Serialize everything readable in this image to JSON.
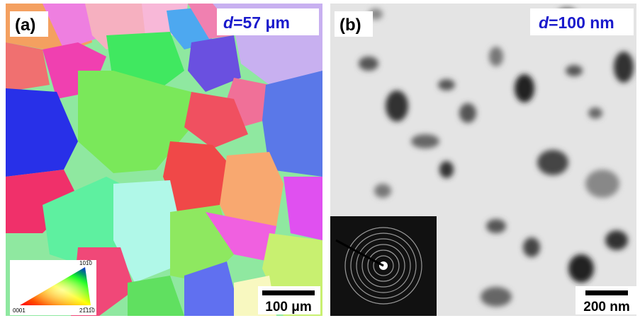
{
  "panels": [
    {
      "label": "(a)",
      "size_symbol": "d",
      "size_value": "=57 μm",
      "scale_bar": "100 μm",
      "ipf_legend": {
        "top": "101̅0",
        "left": "0001",
        "right": "21̅11̅0"
      }
    },
    {
      "label": "(b)",
      "size_symbol": "d",
      "size_value": "=100 nm",
      "scale_bar": "200 nm"
    }
  ]
}
